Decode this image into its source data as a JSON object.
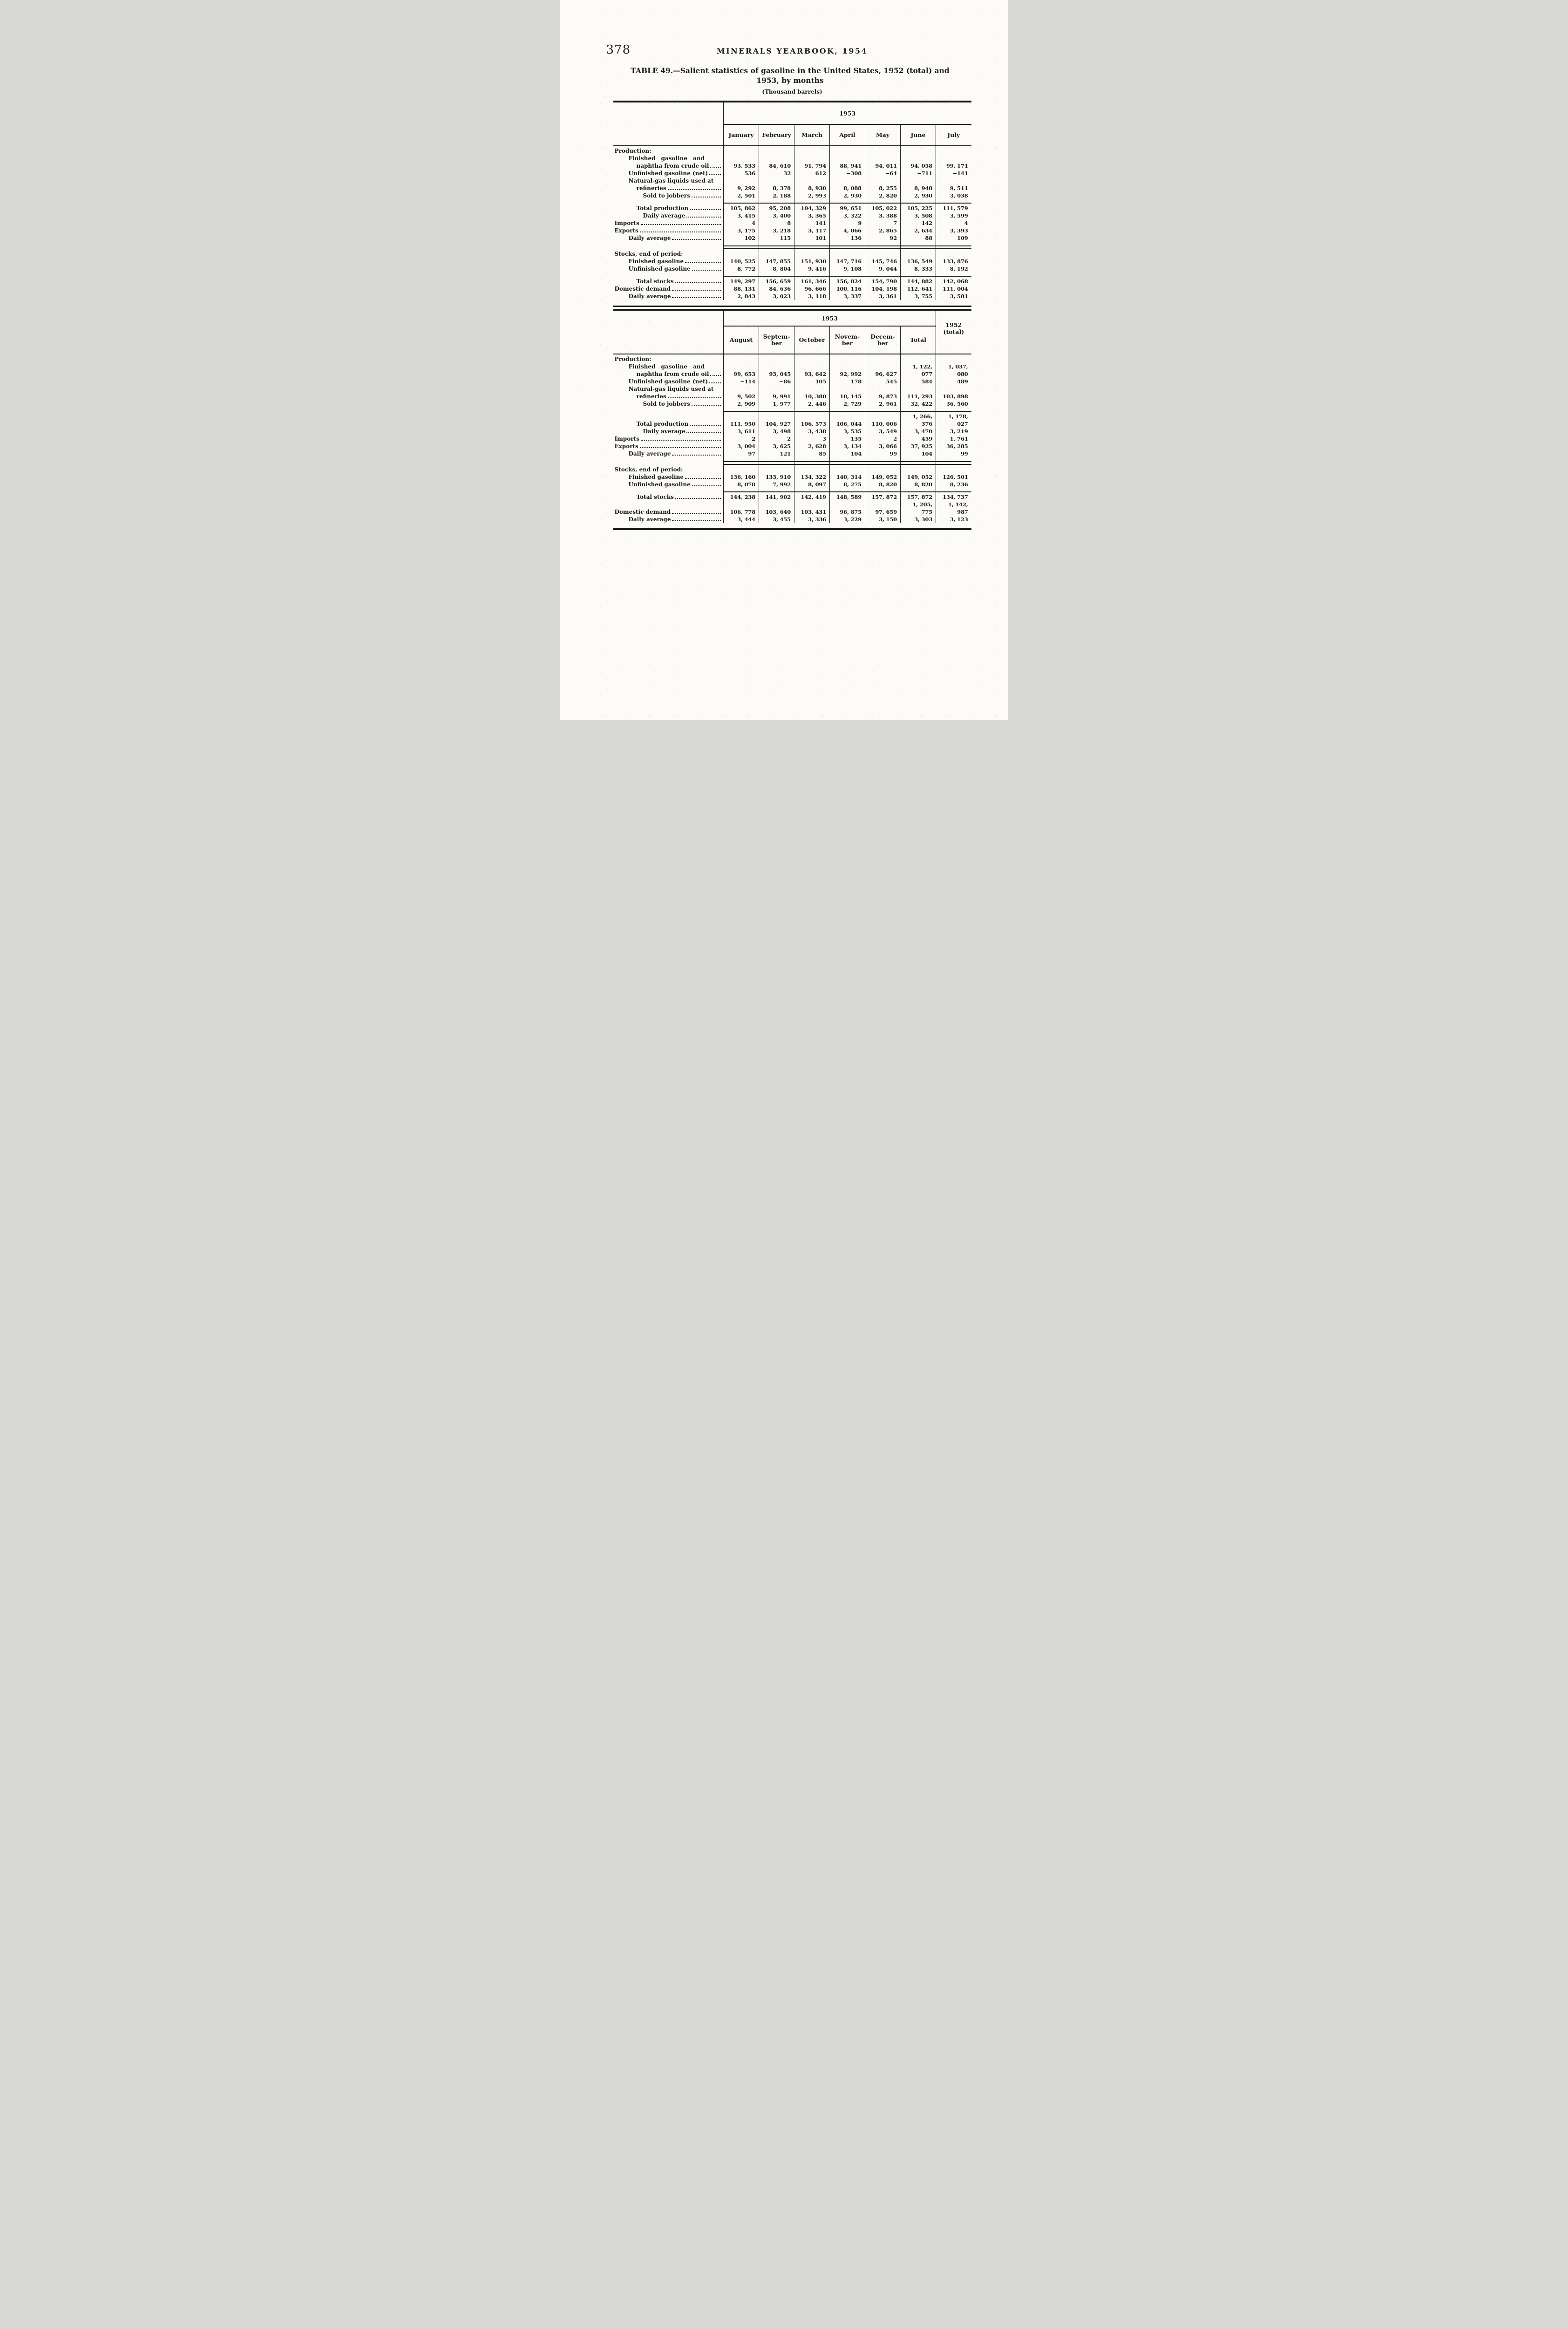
{
  "page": {
    "number": "378",
    "running_head": "MINERALS YEARBOOK, 1954",
    "table_title_line1": "TABLE 49.—Salient statistics of gasoline in the United States, 1952 (total) and",
    "table_title_line2": "1953, by months",
    "unit_note": "(Thousand barrels)"
  },
  "table1": {
    "name": "gasoline-statistics-jan-jul",
    "year_span_header": "1953",
    "month_columns": [
      [
        "January"
      ],
      [
        "February"
      ],
      [
        "March"
      ],
      [
        "April"
      ],
      [
        "May"
      ],
      [
        "June"
      ],
      [
        "July"
      ]
    ],
    "rows": [
      {
        "type": "section",
        "label": "Production:",
        "indent": 0
      },
      {
        "type": "data",
        "lines": [
          {
            "text": "Finished gasoline and",
            "indent": 1,
            "spread": true
          },
          {
            "text": "naphtha from crude oil",
            "indent": 2
          }
        ],
        "leader": true,
        "values": [
          "93, 533",
          "84, 610",
          "91, 794",
          "88, 941",
          "94, 011",
          "94, 058",
          "99, 171"
        ]
      },
      {
        "type": "data",
        "lines": [
          {
            "text": "Unfinished gasoline (net)",
            "indent": 1
          }
        ],
        "leader": true,
        "values": [
          "536",
          "32",
          "612",
          "−308",
          "−64",
          "−711",
          "−141"
        ]
      },
      {
        "type": "data",
        "lines": [
          {
            "text": "Natural-gas liquids used at",
            "indent": 1
          },
          {
            "text": "refineries",
            "indent": 2
          }
        ],
        "leader": true,
        "values": [
          "9, 292",
          "8, 378",
          "8, 930",
          "8, 088",
          "8, 255",
          "8, 948",
          "9, 511"
        ]
      },
      {
        "type": "data",
        "lines": [
          {
            "text": "Sold to jobbers",
            "indent": 3
          }
        ],
        "leader": true,
        "values": [
          "2, 501",
          "2, 188",
          "2, 993",
          "2, 930",
          "2, 820",
          "2, 930",
          "3, 038"
        ]
      },
      {
        "type": "rule"
      },
      {
        "type": "data",
        "lines": [
          {
            "text": "Total production",
            "indent": 2
          }
        ],
        "leader": true,
        "values": [
          "105, 862",
          "95, 208",
          "104, 329",
          "99, 651",
          "105, 022",
          "105, 225",
          "111, 579"
        ]
      },
      {
        "type": "data",
        "lines": [
          {
            "text": "Daily average",
            "indent": 3
          }
        ],
        "leader": true,
        "values": [
          "3, 415",
          "3, 400",
          "3, 365",
          "3, 322",
          "3, 388",
          "3, 508",
          "3, 599"
        ]
      },
      {
        "type": "data",
        "lines": [
          {
            "text": "Imports",
            "indent": 0
          }
        ],
        "leader": true,
        "values": [
          "4",
          "8",
          "141",
          "9",
          "7",
          "142",
          "4"
        ]
      },
      {
        "type": "data",
        "lines": [
          {
            "text": "Exports",
            "indent": 0
          }
        ],
        "leader": true,
        "values": [
          "3, 175",
          "3, 218",
          "3, 117",
          "4, 066",
          "2, 865",
          "2, 634",
          "3, 393"
        ]
      },
      {
        "type": "data",
        "lines": [
          {
            "text": "Daily average",
            "indent": 1
          }
        ],
        "leader": true,
        "values": [
          "102",
          "115",
          "101",
          "136",
          "92",
          "88",
          "109"
        ]
      },
      {
        "type": "dblrule"
      },
      {
        "type": "section",
        "label": "Stocks, end of period:",
        "indent": 0
      },
      {
        "type": "data",
        "lines": [
          {
            "text": "Finished gasoline",
            "indent": 1
          }
        ],
        "leader": true,
        "values": [
          "140, 525",
          "147, 855",
          "151, 930",
          "147, 716",
          "145, 746",
          "136, 549",
          "133, 876"
        ]
      },
      {
        "type": "data",
        "lines": [
          {
            "text": "Unfinished gasoline",
            "indent": 1
          }
        ],
        "leader": true,
        "values": [
          "8, 772",
          "8, 804",
          "9, 416",
          "9, 108",
          "9, 044",
          "8, 333",
          "8, 192"
        ]
      },
      {
        "type": "rule"
      },
      {
        "type": "data",
        "lines": [
          {
            "text": "Total stocks",
            "indent": 2
          }
        ],
        "leader": true,
        "values": [
          "149, 297",
          "156, 659",
          "161, 346",
          "156, 824",
          "154, 790",
          "144, 882",
          "142, 068"
        ]
      },
      {
        "type": "data",
        "lines": [
          {
            "text": "Domestic demand",
            "indent": 0
          }
        ],
        "leader": true,
        "values": [
          "88, 131",
          "84, 636",
          "96, 666",
          "100, 116",
          "104, 198",
          "112, 641",
          "111, 004"
        ]
      },
      {
        "type": "data",
        "lines": [
          {
            "text": "Daily average",
            "indent": 1
          }
        ],
        "leader": true,
        "values": [
          "2, 843",
          "3, 023",
          "3, 118",
          "3, 337",
          "3, 361",
          "3, 755",
          "3, 581"
        ]
      }
    ]
  },
  "table2": {
    "name": "gasoline-statistics-aug-dec-totals",
    "year_span_header": "1953",
    "extra_column_lines": [
      "1952",
      "(total)"
    ],
    "month_columns": [
      [
        "August"
      ],
      [
        "Septem-",
        "ber"
      ],
      [
        "October"
      ],
      [
        "Novem-",
        "ber"
      ],
      [
        "Decem-",
        "ber"
      ],
      [
        "Total"
      ]
    ],
    "rows": [
      {
        "type": "section",
        "label": "Production:",
        "indent": 0
      },
      {
        "type": "data",
        "lines": [
          {
            "text": "Finished gasoline and",
            "indent": 1,
            "spread": true
          },
          {
            "text": "naphtha from crude oil",
            "indent": 2
          }
        ],
        "leader": true,
        "values": [
          "99, 653",
          "93, 045",
          "93, 642",
          "92, 992",
          "96, 627",
          "1, 122, 077",
          "1, 037, 080"
        ]
      },
      {
        "type": "data",
        "lines": [
          {
            "text": "Unfinished gasoline (net)",
            "indent": 1
          }
        ],
        "leader": true,
        "values": [
          "−114",
          "−86",
          "105",
          "178",
          "545",
          "584",
          "489"
        ]
      },
      {
        "type": "data",
        "lines": [
          {
            "text": "Natural-gas liquids used at",
            "indent": 1
          },
          {
            "text": "refineries",
            "indent": 2
          }
        ],
        "leader": true,
        "values": [
          "9, 502",
          "9, 991",
          "10, 380",
          "10, 145",
          "9, 873",
          "111, 293",
          "103, 898"
        ]
      },
      {
        "type": "data",
        "lines": [
          {
            "text": "Sold to jobbers",
            "indent": 3
          }
        ],
        "leader": true,
        "values": [
          "2, 909",
          "1, 977",
          "2, 446",
          "2, 729",
          "2, 961",
          "32, 422",
          "36, 560"
        ]
      },
      {
        "type": "rule"
      },
      {
        "type": "data",
        "lines": [
          {
            "text": "Total production",
            "indent": 2
          }
        ],
        "leader": true,
        "values": [
          "111, 950",
          "104, 927",
          "106, 573",
          "106, 044",
          "110, 006",
          "1, 266, 376",
          "1, 178, 027"
        ]
      },
      {
        "type": "data",
        "lines": [
          {
            "text": "Daily average",
            "indent": 3
          }
        ],
        "leader": true,
        "values": [
          "3, 611",
          "3, 498",
          "3, 438",
          "3, 535",
          "3, 549",
          "3, 470",
          "3, 219"
        ]
      },
      {
        "type": "data",
        "lines": [
          {
            "text": "Imports",
            "indent": 0
          }
        ],
        "leader": true,
        "values": [
          "2",
          "2",
          "3",
          "135",
          "2",
          "459",
          "1, 761"
        ]
      },
      {
        "type": "data",
        "lines": [
          {
            "text": "Exports",
            "indent": 0
          }
        ],
        "leader": true,
        "values": [
          "3, 004",
          "3, 625",
          "2, 628",
          "3, 134",
          "3, 066",
          "37, 925",
          "36, 285"
        ]
      },
      {
        "type": "data",
        "lines": [
          {
            "text": "Daily average",
            "indent": 1
          }
        ],
        "leader": true,
        "values": [
          "97",
          "121",
          "85",
          "104",
          "99",
          "104",
          "99"
        ]
      },
      {
        "type": "dblrule"
      },
      {
        "type": "section",
        "label": "Stocks, end of period:",
        "indent": 0
      },
      {
        "type": "data",
        "lines": [
          {
            "text": "Finished gasoline",
            "indent": 1
          }
        ],
        "leader": true,
        "values": [
          "136, 160",
          "133, 910",
          "134, 322",
          "140, 314",
          "149, 052",
          "149, 052",
          "126, 501"
        ]
      },
      {
        "type": "data",
        "lines": [
          {
            "text": "Unfinished gasoline",
            "indent": 1
          }
        ],
        "leader": true,
        "values": [
          "8, 078",
          "7, 992",
          "8, 097",
          "8, 275",
          "8, 820",
          "8, 820",
          "8, 236"
        ]
      },
      {
        "type": "rule"
      },
      {
        "type": "data",
        "lines": [
          {
            "text": "Total stocks",
            "indent": 2
          }
        ],
        "leader": true,
        "values": [
          "144, 238",
          "141, 902",
          "142, 419",
          "148, 589",
          "157, 872",
          "157, 872",
          "134, 737"
        ]
      },
      {
        "type": "data",
        "lines": [
          {
            "text": "Domestic demand",
            "indent": 0
          }
        ],
        "leader": true,
        "values": [
          "106, 778",
          "103, 640",
          "103, 431",
          "96, 875",
          "97, 659",
          "1, 205, 775",
          "1, 142, 987"
        ]
      },
      {
        "type": "data",
        "lines": [
          {
            "text": "Daily average",
            "indent": 1
          }
        ],
        "leader": true,
        "values": [
          "3, 444",
          "3, 455",
          "3, 336",
          "3, 229",
          "3, 150",
          "3, 303",
          "3, 123"
        ]
      }
    ]
  }
}
